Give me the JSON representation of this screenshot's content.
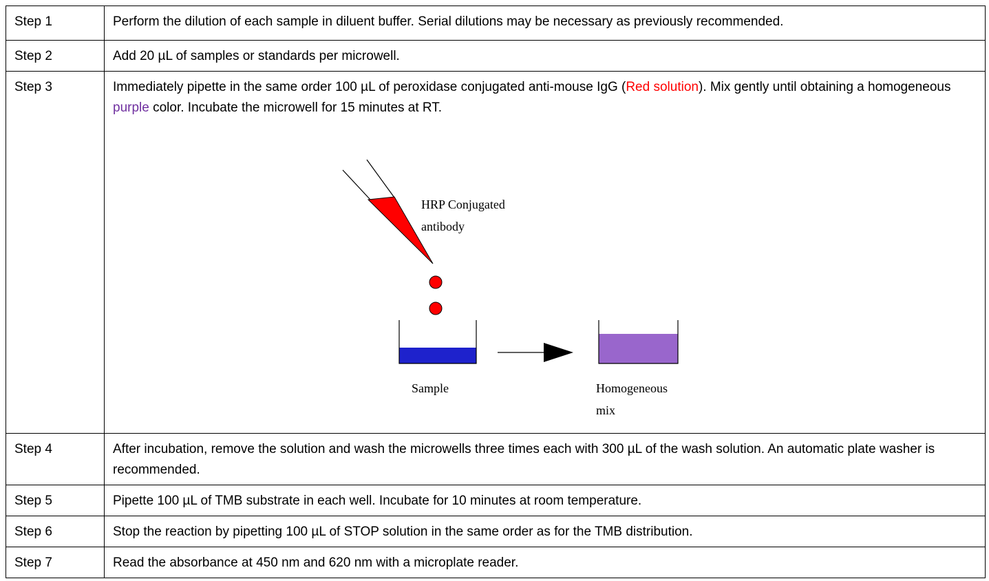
{
  "table": {
    "rows": [
      {
        "step": "Step 1",
        "text": [
          "Perform the dilution of each sample in diluent buffer. Serial dilutions may be necessary as previously recommended."
        ]
      },
      {
        "step": "Step 2",
        "text": [
          "Add 20 µL of samples or standards per microwell."
        ]
      },
      {
        "step": "Step 3",
        "text": [
          "Immediately pipette in the same order 100 µL of peroxidase conjugated anti-mouse IgG (",
          "Red solution",
          "). Mix gently until obtaining a homogeneous ",
          "purple",
          " color. Incubate the microwell for 15 minutes at RT."
        ]
      },
      {
        "step": "Step 4",
        "text": [
          "After incubation, remove the solution and wash the microwells three times each with 300 µL of the wash solution. An automatic plate washer is recommended."
        ]
      },
      {
        "step": "Step 5",
        "text": [
          "Pipette 100 µL of TMB substrate in each well. Incubate for 10 minutes at room temperature."
        ]
      },
      {
        "step": "Step 6",
        "text": [
          "Stop the reaction by pipetting 100 µL of STOP solution in the same order as for the TMB distribution."
        ]
      },
      {
        "step": "Step 7",
        "text": [
          "Read the absorbance at 450 nm and 620 nm with a microplate reader."
        ]
      }
    ]
  },
  "diagram": {
    "pipette_label": [
      "HRP Conjugated",
      "antibody"
    ],
    "sample_label": "Sample",
    "mix_label": [
      "Homogeneous",
      "mix"
    ]
  }
}
